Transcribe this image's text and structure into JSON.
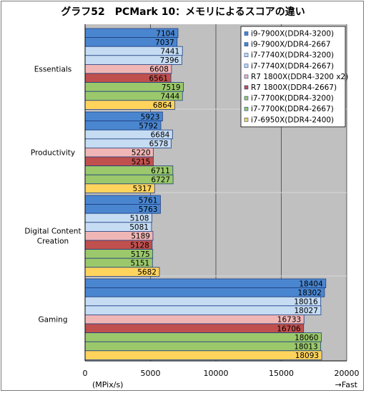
{
  "chart_data": {
    "type": "bar",
    "orientation": "horizontal",
    "title": "グラフ52　PCMark 10：メモリによるスコアの違い",
    "xlabel": "(MPix/s)",
    "direction_label": "→Fast",
    "xlim": [
      0,
      20000
    ],
    "xticks": [
      0,
      5000,
      10000,
      15000,
      20000
    ],
    "grid": true,
    "legend_position": "top-right",
    "categories": [
      "Essentials",
      "Productivity",
      "Digital Content\nCreation",
      "Gaming"
    ],
    "series": [
      {
        "name": "i9-7900X(DDR4-3200)",
        "color": "#4a86d0",
        "values": [
          7104,
          5923,
          5761,
          18404
        ]
      },
      {
        "name": "i9-7900X/DDR4-2667",
        "color": "#4a86d0",
        "values": [
          7037,
          5792,
          5763,
          18302
        ]
      },
      {
        "name": "i7-7740X(DDR4-3200)",
        "color": "#c5dcf3",
        "values": [
          7441,
          6684,
          5108,
          18016
        ]
      },
      {
        "name": "i7-7740X(DDR4-2667)",
        "color": "#c5dcf3",
        "values": [
          7396,
          6578,
          5081,
          18027
        ]
      },
      {
        "name": "R7 1800X(DDR4-3200 x2)",
        "color": "#f0b6b6",
        "values": [
          6608,
          5220,
          5189,
          16733
        ]
      },
      {
        "name": "R7 1800X(DDR4-2667)",
        "color": "#c0504d",
        "values": [
          6561,
          5215,
          5128,
          16706
        ]
      },
      {
        "name": "i7-7700K(DDR4-3200)",
        "color": "#9bc86b",
        "values": [
          7519,
          6711,
          5175,
          18060
        ]
      },
      {
        "name": "i7-7700K(DDR4-2667)",
        "color": "#9bc86b",
        "values": [
          7444,
          6727,
          5151,
          18013
        ]
      },
      {
        "name": "i7-6950X(DDR4-2400)",
        "color": "#ffd35c",
        "values": [
          6864,
          5317,
          5682,
          18093
        ]
      }
    ]
  }
}
